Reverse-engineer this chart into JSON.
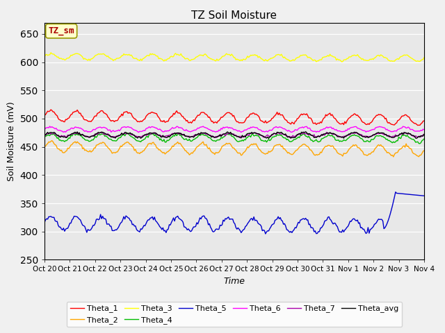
{
  "title": "TZ Soil Moisture",
  "ylabel": "Soil Moisture (mV)",
  "xlabel": "Time",
  "ylim": [
    250,
    670
  ],
  "yticks": [
    250,
    300,
    350,
    400,
    450,
    500,
    550,
    600,
    650
  ],
  "n_points": 360,
  "days": 15,
  "xtick_labels": [
    "Oct 20",
    "Oct 21",
    "Oct 22",
    "Oct 23",
    "Oct 24",
    "Oct 25",
    "Oct 26",
    "Oct 27",
    "Oct 28",
    "Oct 29",
    "Oct 30",
    "Oct 31",
    "Nov 1",
    "Nov 2",
    "Nov 3",
    "Nov 4"
  ],
  "series_order": [
    "Theta_1",
    "Theta_2",
    "Theta_3",
    "Theta_4",
    "Theta_5",
    "Theta_6",
    "Theta_7",
    "Theta_avg"
  ],
  "series": {
    "Theta_1": {
      "color": "#ff0000",
      "base": 505,
      "amp": 9,
      "trend": -0.022,
      "freq": 1.0,
      "noise": 1.2
    },
    "Theta_2": {
      "color": "#ffa500",
      "base": 450,
      "amp": 9,
      "trend": -0.02,
      "freq": 1.0,
      "noise": 1.2
    },
    "Theta_3": {
      "color": "#ffff00",
      "base": 610,
      "amp": 5,
      "trend": -0.01,
      "freq": 1.0,
      "noise": 1.0
    },
    "Theta_4": {
      "color": "#00bb00",
      "base": 467,
      "amp": 6,
      "trend": -0.008,
      "freq": 1.0,
      "noise": 1.2
    },
    "Theta_5": {
      "color": "#0000cc",
      "base": 315,
      "amp": 12,
      "trend": -0.015,
      "freq": 1.0,
      "noise": 2.0
    },
    "Theta_6": {
      "color": "#ff00ff",
      "base": 481,
      "amp": 4,
      "trend": 0.0,
      "freq": 1.0,
      "noise": 0.8
    },
    "Theta_7": {
      "color": "#aa00aa",
      "base": 471,
      "amp": 3,
      "trend": 0.0,
      "freq": 1.0,
      "noise": 0.8
    },
    "Theta_avg": {
      "color": "#000000",
      "base": 471,
      "amp": 4,
      "trend": 0.0,
      "freq": 1.0,
      "noise": 1.0
    }
  },
  "legend_label": "TZ_sm",
  "legend_bg": "#ffffcc",
  "legend_fg": "#aa0000",
  "bg_color": "#e8e8e8",
  "fig_bg": "#f0f0f0"
}
